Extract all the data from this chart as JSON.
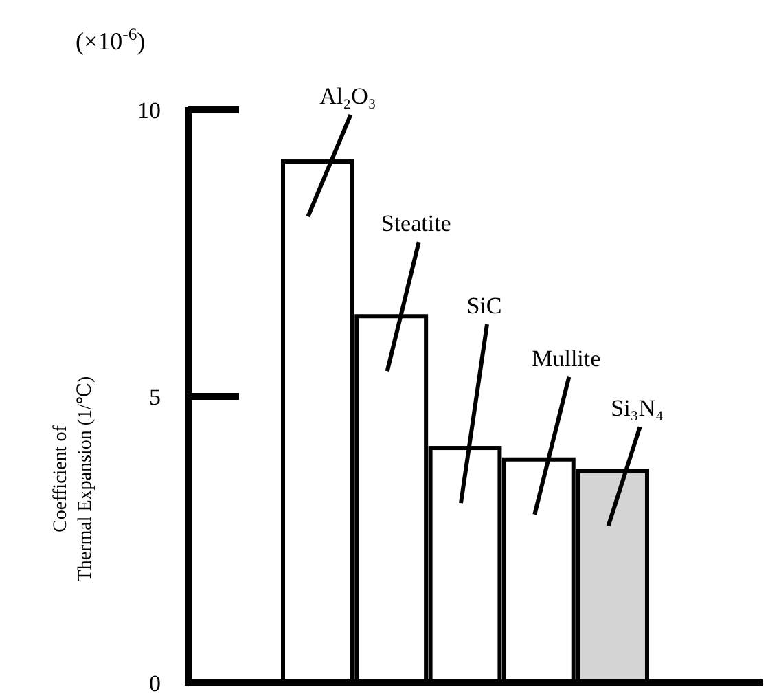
{
  "chart_data": {
    "type": "bar",
    "ylabel": "Coefficient of Thermal Expansion (1/℃)",
    "annotations": [
      "(×10$^{-6}$)"
    ],
    "categories": [
      "Al₂O₃",
      "Steatite",
      "SiC",
      "Mullite",
      "Si₃N₄"
    ],
    "values": [
      9.1,
      6.4,
      4.1,
      3.9,
      3.7
    ],
    "colors": [
      "#ffffff",
      "#ffffff",
      "#ffffff",
      "#ffffff",
      "#d4d4d4"
    ],
    "ylim": [
      0,
      10
    ],
    "yticks": [
      0,
      5,
      10
    ],
    "grid": false,
    "legend": false
  }
}
